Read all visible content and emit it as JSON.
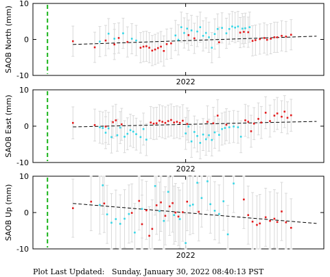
{
  "footer": {
    "label": "Plot Last Updated:",
    "timestamp": "Sunday, January 30, 2022 08:40:13 PST"
  },
  "colors": {
    "east_of_antenna": "#e31a1c",
    "west_of_antenna": "#33d6e6",
    "error_bar": "#d9d9d9",
    "trend": "#000000",
    "event_line": "#19b419"
  },
  "chart_data": [
    {
      "type": "scatter",
      "ylabel": "SAOB North (mm)",
      "ylim": [
        -10,
        10
      ],
      "yticks": [
        "10",
        "0",
        "-10"
      ],
      "xtick_labels": [
        "2022"
      ],
      "xtick_value": 210,
      "xlim": [
        0,
        400
      ],
      "event_line_x": 20,
      "trend": {
        "start": [
          55,
          -1.4
        ],
        "end": [
          390,
          0.9
        ]
      },
      "red": [
        [
          55,
          -0.5
        ],
        [
          85,
          -2.2
        ],
        [
          100,
          -0.3
        ],
        [
          112,
          -1.4
        ],
        [
          118,
          0.4
        ],
        [
          130,
          -0.7
        ],
        [
          148,
          -2.3
        ],
        [
          152,
          -2.0
        ],
        [
          156,
          -1.9
        ],
        [
          160,
          -2.3
        ],
        [
          164,
          -3.1
        ],
        [
          168,
          -2.8
        ],
        [
          172,
          -2.4
        ],
        [
          176,
          -2.0
        ],
        [
          180,
          -3.2
        ],
        [
          184,
          -1.3
        ],
        [
          190,
          -1.1
        ],
        [
          214,
          1.2
        ],
        [
          222,
          0.3
        ],
        [
          256,
          -0.8
        ],
        [
          285,
          1.9
        ],
        [
          290,
          2.1
        ],
        [
          296,
          2.0
        ],
        [
          302,
          -0.4
        ],
        [
          306,
          -0.2
        ],
        [
          312,
          0.1
        ],
        [
          318,
          0.4
        ],
        [
          322,
          -0.1
        ],
        [
          327,
          0.2
        ],
        [
          332,
          0.6
        ],
        [
          336,
          0.6
        ],
        [
          342,
          1.0
        ],
        [
          348,
          0.8
        ],
        [
          355,
          1.3
        ]
      ],
      "cyan": [
        [
          92,
          -0.6
        ],
        [
          104,
          1.6
        ],
        [
          112,
          0.2
        ],
        [
          124,
          1.7
        ],
        [
          136,
          0.2
        ],
        [
          142,
          -0.3
        ],
        [
          196,
          1.1
        ],
        [
          200,
          -0.1
        ],
        [
          204,
          3.4
        ],
        [
          208,
          1.8
        ],
        [
          212,
          3.0
        ],
        [
          218,
          2.5
        ],
        [
          226,
          2.2
        ],
        [
          230,
          3.4
        ],
        [
          234,
          1.0
        ],
        [
          238,
          1.8
        ],
        [
          242,
          0.6
        ],
        [
          246,
          -2.3
        ],
        [
          250,
          1.5
        ],
        [
          254,
          2.9
        ],
        [
          260,
          3.2
        ],
        [
          266,
          1.7
        ],
        [
          270,
          2.9
        ],
        [
          274,
          3.6
        ],
        [
          278,
          3.3
        ],
        [
          282,
          3.6
        ],
        [
          288,
          3.0
        ],
        [
          292,
          3.1
        ],
        [
          298,
          3.4
        ]
      ],
      "err": 4.2
    },
    {
      "type": "scatter",
      "ylabel": "SAOB East (mm)",
      "ylim": [
        -10,
        10
      ],
      "yticks": [
        "10",
        "0",
        "-10"
      ],
      "xtick_labels": [
        "2022"
      ],
      "xtick_value": 210,
      "xlim": [
        0,
        400
      ],
      "event_line_x": 20,
      "trend": {
        "start": [
          55,
          -0.2
        ],
        "end": [
          390,
          1.3
        ]
      },
      "red": [
        [
          55,
          0.9
        ],
        [
          85,
          0.3
        ],
        [
          100,
          -0.1
        ],
        [
          110,
          1.1
        ],
        [
          114,
          1.6
        ],
        [
          122,
          0.5
        ],
        [
          162,
          1.0
        ],
        [
          166,
          0.7
        ],
        [
          170,
          0.8
        ],
        [
          174,
          1.5
        ],
        [
          178,
          1.2
        ],
        [
          182,
          0.9
        ],
        [
          186,
          1.4
        ],
        [
          190,
          1.7
        ],
        [
          194,
          1.0
        ],
        [
          198,
          1.2
        ],
        [
          202,
          0.9
        ],
        [
          206,
          1.5
        ],
        [
          212,
          0.6
        ],
        [
          240,
          1.2
        ],
        [
          248,
          0.8
        ],
        [
          254,
          2.9
        ],
        [
          266,
          0.4
        ],
        [
          292,
          1.6
        ],
        [
          296,
          1.2
        ],
        [
          300,
          -1.4
        ],
        [
          304,
          0.7
        ],
        [
          310,
          2.0
        ],
        [
          314,
          1.0
        ],
        [
          320,
          3.7
        ],
        [
          326,
          1.4
        ],
        [
          332,
          2.9
        ],
        [
          336,
          3.5
        ],
        [
          342,
          2.6
        ],
        [
          346,
          4.0
        ],
        [
          350,
          2.3
        ],
        [
          355,
          3.0
        ]
      ],
      "cyan": [
        [
          92,
          -0.3
        ],
        [
          96,
          -0.5
        ],
        [
          100,
          -1.8
        ],
        [
          104,
          -0.6
        ],
        [
          108,
          -3.0
        ],
        [
          116,
          -2.5
        ],
        [
          120,
          -0.4
        ],
        [
          126,
          -2.9
        ],
        [
          130,
          -2.1
        ],
        [
          134,
          -1.1
        ],
        [
          138,
          -1.5
        ],
        [
          142,
          -2.2
        ],
        [
          148,
          -3.0
        ],
        [
          152,
          -0.8
        ],
        [
          156,
          -3.7
        ],
        [
          210,
          -2.0
        ],
        [
          214,
          -0.1
        ],
        [
          218,
          -4.2
        ],
        [
          222,
          -1.6
        ],
        [
          226,
          -2.7
        ],
        [
          230,
          -4.6
        ],
        [
          234,
          -2.3
        ],
        [
          238,
          -3.6
        ],
        [
          242,
          -2.5
        ],
        [
          246,
          -3.8
        ],
        [
          250,
          -1.7
        ],
        [
          256,
          -2.4
        ],
        [
          260,
          -0.8
        ],
        [
          264,
          -0.5
        ],
        [
          270,
          -0.3
        ],
        [
          276,
          -0.1
        ],
        [
          282,
          -0.3
        ],
        [
          286,
          -2.9
        ]
      ],
      "err": 4.4
    },
    {
      "type": "scatter",
      "ylabel": "SAOB Up (mm)",
      "ylim": [
        -10,
        10
      ],
      "yticks": [
        "10",
        "0",
        "-10"
      ],
      "xtick_labels": [
        "2022"
      ],
      "xtick_value": 210,
      "xlim": [
        0,
        400
      ],
      "event_line_x": 20,
      "trend": {
        "start": [
          55,
          2.5
        ],
        "end": [
          390,
          -3.0
        ]
      },
      "red": [
        [
          55,
          1.2
        ],
        [
          80,
          3.0
        ],
        [
          98,
          2.5
        ],
        [
          136,
          -0.1
        ],
        [
          146,
          3.2
        ],
        [
          150,
          -3.2
        ],
        [
          156,
          0.6
        ],
        [
          160,
          -6.4
        ],
        [
          164,
          -4.5
        ],
        [
          170,
          2.0
        ],
        [
          176,
          2.8
        ],
        [
          182,
          -0.9
        ],
        [
          188,
          1.7
        ],
        [
          192,
          2.6
        ],
        [
          196,
          0.0
        ],
        [
          200,
          -1.1
        ],
        [
          206,
          0.1
        ],
        [
          212,
          3.0
        ],
        [
          228,
          0.2
        ],
        [
          290,
          3.6
        ],
        [
          296,
          -0.7
        ],
        [
          302,
          -2.5
        ],
        [
          308,
          -3.4
        ],
        [
          312,
          -3.0
        ],
        [
          320,
          -1.3
        ],
        [
          326,
          -2.3
        ],
        [
          332,
          -1.7
        ],
        [
          336,
          -2.6
        ],
        [
          342,
          0.3
        ],
        [
          348,
          -2.7
        ],
        [
          355,
          -4.2
        ]
      ],
      "cyan": [
        [
          92,
          2.1
        ],
        [
          96,
          7.5
        ],
        [
          102,
          -0.5
        ],
        [
          108,
          -2.8
        ],
        [
          114,
          -1.8
        ],
        [
          120,
          -3.1
        ],
        [
          126,
          -1.7
        ],
        [
          132,
          -0.4
        ],
        [
          140,
          -5.5
        ],
        [
          150,
          1.0
        ],
        [
          168,
          7.3
        ],
        [
          174,
          0.4
        ],
        [
          180,
          -2.3
        ],
        [
          186,
          5.7
        ],
        [
          194,
          -0.7
        ],
        [
          202,
          -1.8
        ],
        [
          210,
          -8.4
        ],
        [
          216,
          1.9
        ],
        [
          220,
          2.2
        ],
        [
          226,
          8.2
        ],
        [
          232,
          4.0
        ],
        [
          240,
          8.6
        ],
        [
          244,
          2.3
        ],
        [
          250,
          0.5
        ],
        [
          256,
          -0.4
        ],
        [
          262,
          3.1
        ],
        [
          268,
          -6.0
        ],
        [
          276,
          8.0
        ]
      ],
      "err": 8.0
    }
  ]
}
